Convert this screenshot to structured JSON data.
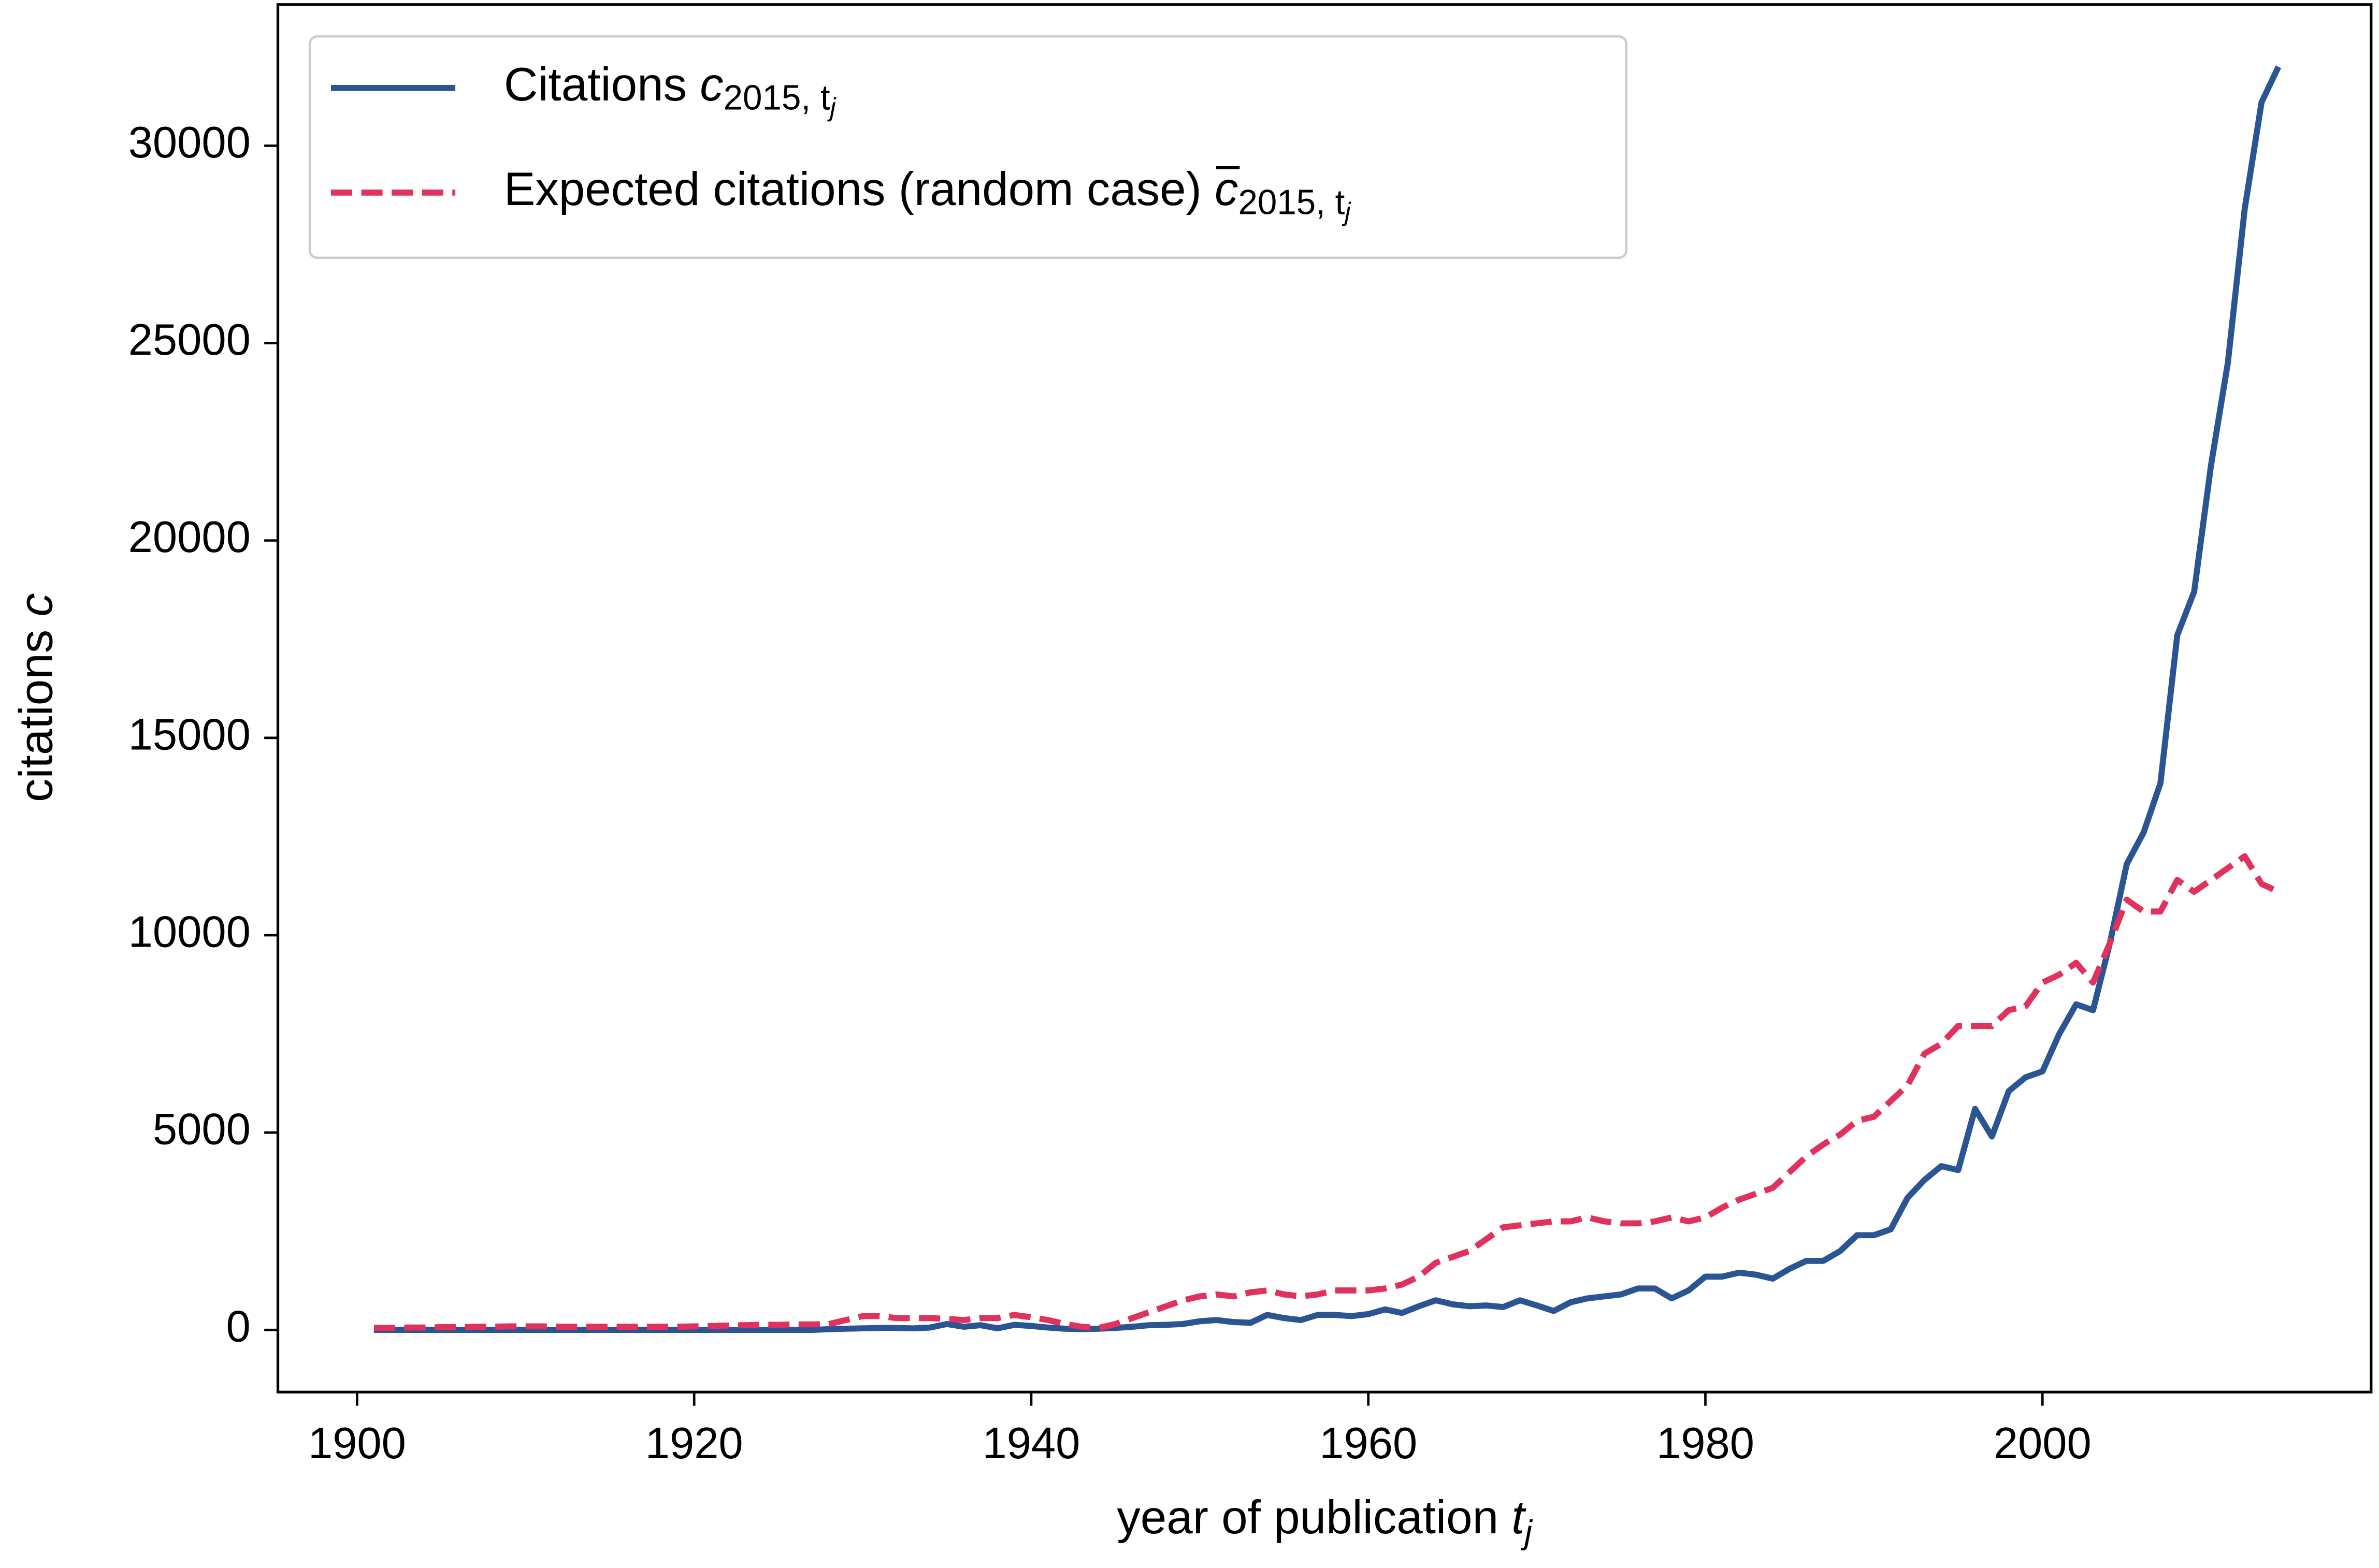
{
  "chart_data": {
    "type": "line",
    "x_label": "year of publication",
    "x_label_symbol": "t",
    "x_label_subscript": "j",
    "y_label": "citations",
    "y_label_symbol": "c",
    "x": [
      1901,
      1902,
      1903,
      1904,
      1905,
      1906,
      1907,
      1908,
      1909,
      1910,
      1911,
      1912,
      1913,
      1914,
      1915,
      1916,
      1917,
      1918,
      1919,
      1920,
      1921,
      1922,
      1923,
      1924,
      1925,
      1926,
      1927,
      1928,
      1929,
      1930,
      1931,
      1932,
      1933,
      1934,
      1935,
      1936,
      1937,
      1938,
      1939,
      1940,
      1941,
      1942,
      1943,
      1944,
      1945,
      1946,
      1947,
      1948,
      1949,
      1950,
      1951,
      1952,
      1953,
      1954,
      1955,
      1956,
      1957,
      1958,
      1959,
      1960,
      1961,
      1962,
      1963,
      1964,
      1965,
      1966,
      1967,
      1968,
      1969,
      1970,
      1971,
      1972,
      1973,
      1974,
      1975,
      1976,
      1977,
      1978,
      1979,
      1980,
      1981,
      1982,
      1983,
      1984,
      1985,
      1986,
      1987,
      1988,
      1989,
      1990,
      1991,
      1992,
      1993,
      1994,
      1995,
      1996,
      1997,
      1998,
      1999,
      2000,
      2001,
      2002,
      2003,
      2004,
      2005,
      2006,
      2007,
      2008,
      2009,
      2010,
      2011,
      2012,
      2013,
      2014
    ],
    "series": [
      {
        "name": "Citations",
        "name_symbol": "c",
        "name_subscript": "2015, t",
        "name_subsubscript": "j",
        "color": "#2b5592",
        "dashed": false,
        "values": [
          0,
          0,
          0,
          0,
          0,
          0,
          0,
          0,
          0,
          0,
          0,
          0,
          0,
          0,
          0,
          0,
          0,
          0,
          0,
          0,
          0,
          0,
          0,
          0,
          0,
          0,
          0,
          20,
          30,
          40,
          50,
          50,
          40,
          60,
          150,
          80,
          120,
          40,
          130,
          100,
          60,
          30,
          20,
          30,
          50,
          80,
          120,
          130,
          150,
          220,
          250,
          200,
          180,
          380,
          300,
          250,
          380,
          380,
          350,
          400,
          520,
          430,
          600,
          750,
          650,
          600,
          620,
          580,
          750,
          620,
          480,
          700,
          800,
          850,
          900,
          1050,
          1050,
          800,
          1000,
          1350,
          1350,
          1450,
          1400,
          1300,
          1550,
          1750,
          1750,
          2000,
          2400,
          2400,
          2550,
          3350,
          3800,
          4150,
          4050,
          5600,
          4900,
          6050,
          6400,
          6550,
          7500,
          8250,
          8100,
          9800,
          11800,
          12600,
          13850,
          17600,
          18700,
          21900,
          24500,
          28400,
          31100,
          32000
        ]
      },
      {
        "name": "Expected citations (random case)",
        "name_symbol": "c",
        "name_subscript": "2015, t",
        "name_subsubscript": "j",
        "name_symbol_bar": true,
        "color": "#e0325c",
        "dashed": true,
        "values": [
          50,
          50,
          60,
          60,
          70,
          70,
          80,
          80,
          90,
          90,
          90,
          80,
          80,
          80,
          80,
          80,
          80,
          80,
          80,
          90,
          100,
          110,
          120,
          130,
          130,
          140,
          140,
          150,
          250,
          350,
          350,
          300,
          300,
          300,
          280,
          250,
          300,
          300,
          380,
          320,
          250,
          150,
          80,
          50,
          150,
          300,
          450,
          600,
          750,
          850,
          900,
          850,
          950,
          1000,
          900,
          850,
          900,
          1000,
          1000,
          1000,
          1050,
          1150,
          1350,
          1700,
          1850,
          2000,
          2300,
          2600,
          2650,
          2700,
          2750,
          2750,
          2850,
          2750,
          2700,
          2700,
          2750,
          2850,
          2750,
          2850,
          3100,
          3300,
          3450,
          3600,
          4000,
          4400,
          4700,
          4950,
          5300,
          5400,
          5800,
          6200,
          7000,
          7250,
          7700,
          7700,
          7700,
          8100,
          8200,
          8800,
          9000,
          9300,
          8800,
          9800,
          10900,
          10600,
          10600,
          11400,
          11100,
          11400,
          11700,
          12000,
          11300,
          11100
        ]
      }
    ],
    "xlim": [
      1895.3,
      2019.5
    ],
    "ylim": [
      -1575,
      33577
    ],
    "xticks": [
      1900,
      1920,
      1940,
      1960,
      1980,
      2000
    ],
    "yticks": [
      0,
      5000,
      10000,
      15000,
      20000,
      25000,
      30000
    ],
    "grid": false,
    "legend": "upper left"
  }
}
